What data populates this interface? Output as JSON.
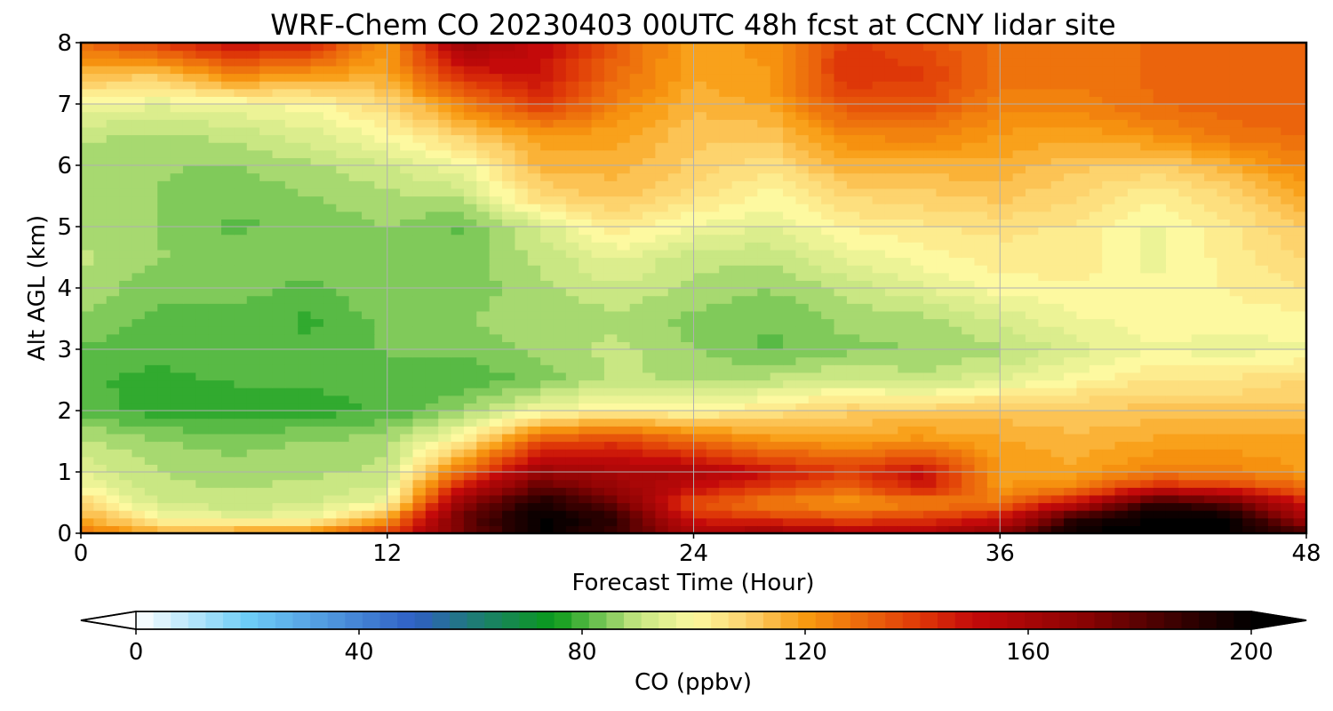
{
  "chart_data": {
    "type": "heatmap",
    "title": "WRF-Chem CO  20230403 00UTC 48h fcst at CCNY lidar site",
    "xlabel": "Forecast Time (Hour)",
    "ylabel": "Alt AGL (km)",
    "xlim": [
      0,
      48
    ],
    "ylim": [
      0,
      8
    ],
    "xticks": [
      0,
      12,
      24,
      36,
      48
    ],
    "yticks": [
      0,
      1,
      2,
      3,
      4,
      5,
      6,
      7,
      8
    ],
    "grid": true,
    "x": [
      0,
      3,
      6,
      9,
      12,
      15,
      18,
      21,
      24,
      27,
      30,
      33,
      36,
      39,
      42,
      45,
      48
    ],
    "y": [
      0,
      0.25,
      0.5,
      0.75,
      1,
      1.5,
      2,
      2.5,
      3,
      3.5,
      4,
      4.5,
      5,
      5.5,
      6,
      6.5,
      7,
      7.5,
      8
    ],
    "z": [
      [
        128,
        118,
        120,
        122,
        140,
        175,
        200,
        185,
        160,
        165,
        160,
        158,
        170,
        200,
        200,
        200,
        185
      ],
      [
        118,
        100,
        96,
        98,
        120,
        178,
        200,
        190,
        145,
        140,
        135,
        140,
        148,
        190,
        200,
        200,
        160
      ],
      [
        108,
        92,
        90,
        91,
        98,
        168,
        195,
        175,
        135,
        125,
        120,
        124,
        128,
        150,
        190,
        180,
        145
      ],
      [
        100,
        90,
        89,
        90,
        93,
        150,
        180,
        165,
        150,
        140,
        130,
        148,
        120,
        125,
        145,
        140,
        130
      ],
      [
        95,
        89,
        87,
        88,
        90,
        130,
        165,
        160,
        158,
        148,
        140,
        150,
        120,
        118,
        125,
        125,
        120
      ],
      [
        90,
        86,
        85,
        86,
        88,
        103,
        135,
        140,
        130,
        122,
        120,
        122,
        118,
        115,
        118,
        118,
        118
      ],
      [
        82,
        78,
        78,
        78,
        80,
        86,
        98,
        102,
        100,
        105,
        110,
        110,
        112,
        112,
        112,
        112,
        112
      ],
      [
        80,
        79,
        80,
        80,
        82,
        80,
        84,
        90,
        88,
        90,
        93,
        90,
        95,
        100,
        105,
        105,
        108
      ],
      [
        82,
        80,
        82,
        80,
        83,
        84,
        87,
        90,
        86,
        82,
        85,
        86,
        88,
        94,
        98,
        97,
        98
      ],
      [
        86,
        82,
        82,
        79,
        84,
        86,
        87,
        88,
        85,
        83,
        87,
        88,
        93,
        98,
        100,
        100,
        100
      ],
      [
        88,
        84,
        84,
        82,
        86,
        84,
        88,
        92,
        88,
        86,
        90,
        95,
        100,
        101,
        99,
        102,
        105
      ],
      [
        90,
        86,
        86,
        84,
        86,
        84,
        90,
        96,
        90,
        90,
        96,
        100,
        103,
        104,
        97,
        103,
        108
      ],
      [
        88,
        86,
        82,
        84,
        86,
        82,
        93,
        104,
        98,
        95,
        102,
        104,
        106,
        104,
        98,
        104,
        112
      ],
      [
        88,
        86,
        84,
        86,
        88,
        90,
        108,
        112,
        106,
        100,
        108,
        110,
        112,
        108,
        102,
        108,
        118
      ],
      [
        86,
        86,
        86,
        88,
        92,
        98,
        115,
        116,
        110,
        106,
        116,
        116,
        116,
        112,
        110,
        116,
        125
      ],
      [
        90,
        88,
        90,
        94,
        100,
        110,
        120,
        118,
        112,
        112,
        124,
        125,
        120,
        118,
        122,
        128,
        130
      ],
      [
        98,
        96,
        98,
        100,
        108,
        125,
        140,
        125,
        115,
        118,
        135,
        135,
        125,
        125,
        130,
        132,
        132
      ],
      [
        115,
        112,
        125,
        120,
        118,
        145,
        150,
        130,
        118,
        120,
        142,
        140,
        128,
        128,
        130,
        132,
        132
      ],
      [
        130,
        140,
        150,
        145,
        120,
        165,
        150,
        132,
        118,
        122,
        140,
        135,
        128,
        128,
        130,
        130,
        130
      ]
    ],
    "colorbar": {
      "label": "CO  (ppbv)",
      "min": 0,
      "max": 200,
      "ticks": [
        0,
        40,
        80,
        120,
        160,
        200
      ],
      "extend": "both",
      "stops": [
        {
          "v": 0,
          "c": "#ffffff"
        },
        {
          "v": 20,
          "c": "#6ecdf7"
        },
        {
          "v": 50,
          "c": "#2f5fc4"
        },
        {
          "v": 60,
          "c": "#1f7a7a"
        },
        {
          "v": 75,
          "c": "#0a9a1a"
        },
        {
          "v": 90,
          "c": "#c6e681"
        },
        {
          "v": 100,
          "c": "#fdf9a0"
        },
        {
          "v": 110,
          "c": "#fdd06a"
        },
        {
          "v": 120,
          "c": "#f89a10"
        },
        {
          "v": 140,
          "c": "#e03a08"
        },
        {
          "v": 150,
          "c": "#c40a0a"
        },
        {
          "v": 170,
          "c": "#8a0303"
        },
        {
          "v": 190,
          "c": "#2a0000"
        },
        {
          "v": 200,
          "c": "#000000"
        }
      ]
    }
  }
}
